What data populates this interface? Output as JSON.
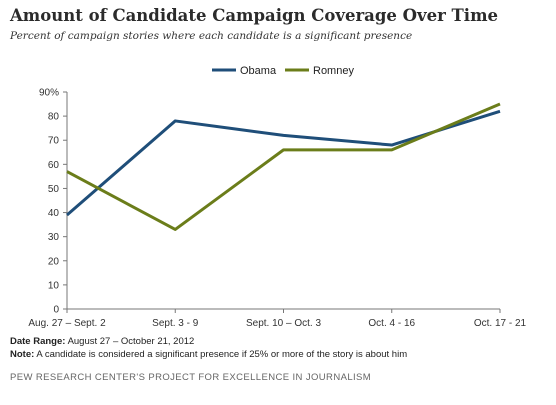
{
  "title": "Amount of Candidate Campaign Coverage Over Time",
  "subtitle": "Percent of campaign stories where each candidate is a significant presence",
  "footer": {
    "date_range_label": "Date Range:",
    "date_range_value": "August 27 – October 21, 2012",
    "note_label": "Note:",
    "note_value": "A candidate is considered a significant presence if 25% or more of the story is about him",
    "source": "PEW RESEARCH CENTER'S PROJECT FOR EXCELLENCE IN JOURNALISM"
  },
  "chart_data": {
    "type": "line",
    "categories": [
      "Aug. 27 – Sept. 2",
      "Sept. 3 - 9",
      "Sept. 10 – Oct. 3",
      "Oct. 4 - 16",
      "Oct. 17 - 21"
    ],
    "series": [
      {
        "name": "Obama",
        "color": "#1f4e79",
        "values": [
          39,
          78,
          72,
          68,
          82
        ]
      },
      {
        "name": "Romney",
        "color": "#6b7d1a",
        "values": [
          57,
          33,
          66,
          66,
          85
        ]
      }
    ],
    "ylim": [
      0,
      90
    ],
    "yticks": [
      0,
      10,
      20,
      30,
      40,
      50,
      60,
      70,
      80,
      90
    ],
    "ytick_labels": [
      "0",
      "10",
      "20",
      "30",
      "40",
      "50",
      "60",
      "70",
      "80",
      "90%"
    ],
    "legend_position": "top-center",
    "grid": false
  }
}
